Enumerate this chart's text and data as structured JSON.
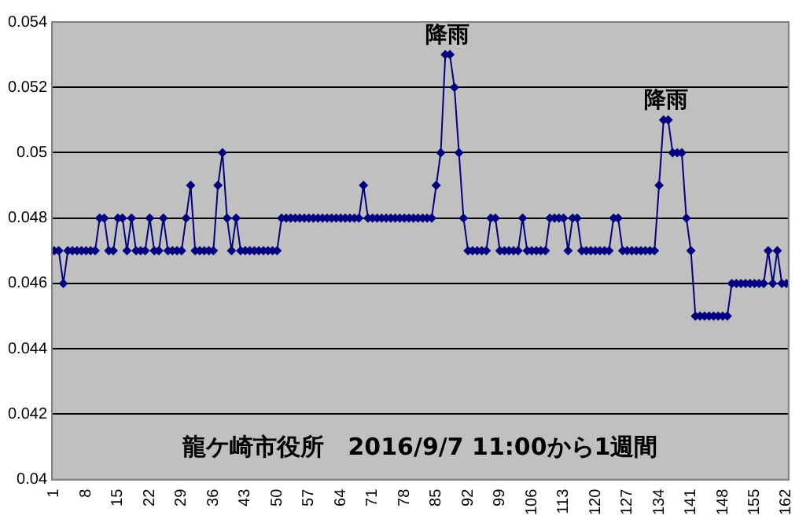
{
  "chart_data": {
    "type": "line",
    "annotations": [
      {
        "text": "降雨",
        "x": 87.5,
        "y": 0.053
      },
      {
        "text": "降雨",
        "x": 135.5,
        "y": 0.051
      },
      "龍ケ崎市役所　2016/9/7 11:00から1週間"
    ],
    "x": [
      1,
      2,
      3,
      4,
      5,
      6,
      7,
      8,
      9,
      10,
      11,
      12,
      13,
      14,
      15,
      16,
      17,
      18,
      19,
      20,
      21,
      22,
      23,
      24,
      25,
      26,
      27,
      28,
      29,
      30,
      31,
      32,
      33,
      34,
      35,
      36,
      37,
      38,
      39,
      40,
      41,
      42,
      43,
      44,
      45,
      46,
      47,
      48,
      49,
      50,
      51,
      52,
      53,
      54,
      55,
      56,
      57,
      58,
      59,
      60,
      61,
      62,
      63,
      64,
      65,
      66,
      67,
      68,
      69,
      70,
      71,
      72,
      73,
      74,
      75,
      76,
      77,
      78,
      79,
      80,
      81,
      82,
      83,
      84,
      85,
      86,
      87,
      88,
      89,
      90,
      91,
      92,
      93,
      94,
      95,
      96,
      97,
      98,
      99,
      100,
      101,
      102,
      103,
      104,
      105,
      106,
      107,
      108,
      109,
      110,
      111,
      112,
      113,
      114,
      115,
      116,
      117,
      118,
      119,
      120,
      121,
      122,
      123,
      124,
      125,
      126,
      127,
      128,
      129,
      130,
      131,
      132,
      133,
      134,
      135,
      136,
      137,
      138,
      139,
      140,
      141,
      142,
      143,
      144,
      145,
      146,
      147,
      148,
      149,
      150,
      151,
      152,
      153,
      154,
      155,
      156,
      157,
      158,
      159,
      160,
      161,
      162
    ],
    "series": [
      {
        "color": "#000080",
        "values": [
          0.047,
          0.047,
          0.046,
          0.047,
          0.047,
          0.047,
          0.047,
          0.047,
          0.047,
          0.047,
          0.048,
          0.048,
          0.047,
          0.047,
          0.048,
          0.048,
          0.047,
          0.048,
          0.047,
          0.047,
          0.047,
          0.048,
          0.047,
          0.047,
          0.048,
          0.047,
          0.047,
          0.047,
          0.047,
          0.048,
          0.049,
          0.047,
          0.047,
          0.047,
          0.047,
          0.047,
          0.049,
          0.05,
          0.048,
          0.047,
          0.048,
          0.047,
          0.047,
          0.047,
          0.047,
          0.047,
          0.047,
          0.047,
          0.047,
          0.047,
          0.048,
          0.048,
          0.048,
          0.048,
          0.048,
          0.048,
          0.048,
          0.048,
          0.048,
          0.048,
          0.048,
          0.048,
          0.048,
          0.048,
          0.048,
          0.048,
          0.048,
          0.048,
          0.049,
          0.048,
          0.048,
          0.048,
          0.048,
          0.048,
          0.048,
          0.048,
          0.048,
          0.048,
          0.048,
          0.048,
          0.048,
          0.048,
          0.048,
          0.048,
          0.049,
          0.05,
          0.053,
          0.053,
          0.052,
          0.05,
          0.048,
          0.047,
          0.047,
          0.047,
          0.047,
          0.047,
          0.048,
          0.048,
          0.047,
          0.047,
          0.047,
          0.047,
          0.047,
          0.048,
          0.047,
          0.047,
          0.047,
          0.047,
          0.047,
          0.048,
          0.048,
          0.048,
          0.048,
          0.047,
          0.048,
          0.048,
          0.047,
          0.047,
          0.047,
          0.047,
          0.047,
          0.047,
          0.047,
          0.048,
          0.048,
          0.047,
          0.047,
          0.047,
          0.047,
          0.047,
          0.047,
          0.047,
          0.047,
          0.049,
          0.051,
          0.051,
          0.05,
          0.05,
          0.05,
          0.048,
          0.047,
          0.045,
          0.045,
          0.045,
          0.045,
          0.045,
          0.045,
          0.045,
          0.045,
          0.046,
          0.046,
          0.046,
          0.046,
          0.046,
          0.046,
          0.046,
          0.046,
          0.047,
          0.046,
          0.047,
          0.046,
          0.046
        ]
      }
    ],
    "xlim": [
      0.5,
      162.5
    ],
    "xticks": [
      1,
      8,
      15,
      22,
      29,
      36,
      43,
      50,
      57,
      64,
      71,
      78,
      85,
      92,
      99,
      106,
      113,
      120,
      127,
      134,
      141,
      148,
      155,
      162
    ],
    "ylim": [
      0.04,
      0.054
    ],
    "yticks": [
      0.04,
      0.042,
      0.044,
      0.046,
      0.048,
      0.05,
      0.052,
      0.054
    ],
    "grid": "y",
    "marker": "diamond",
    "line_style": "solid"
  }
}
